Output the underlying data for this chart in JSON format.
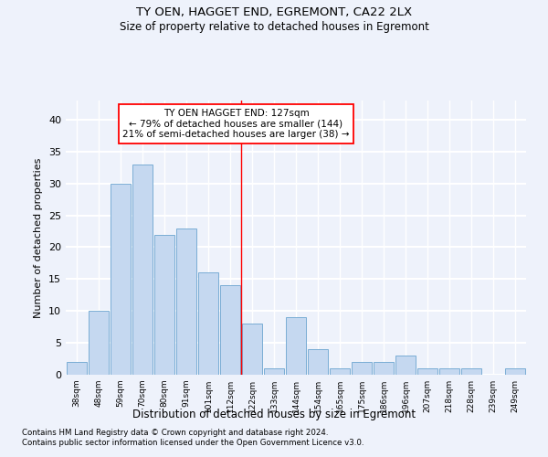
{
  "title": "TY OEN, HAGGET END, EGREMONT, CA22 2LX",
  "subtitle": "Size of property relative to detached houses in Egremont",
  "xlabel": "Distribution of detached houses by size in Egremont",
  "ylabel": "Number of detached properties",
  "categories": [
    "38sqm",
    "48sqm",
    "59sqm",
    "70sqm",
    "80sqm",
    "91sqm",
    "101sqm",
    "112sqm",
    "122sqm",
    "133sqm",
    "144sqm",
    "154sqm",
    "165sqm",
    "175sqm",
    "186sqm",
    "196sqm",
    "207sqm",
    "218sqm",
    "228sqm",
    "239sqm",
    "249sqm"
  ],
  "values": [
    2,
    10,
    30,
    33,
    22,
    23,
    16,
    14,
    8,
    1,
    9,
    4,
    1,
    2,
    2,
    3,
    1,
    1,
    1,
    0,
    1
  ],
  "bar_color": "#c5d8f0",
  "bar_edge_color": "#7aadd4",
  "background_color": "#eef2fb",
  "grid_color": "#ffffff",
  "red_line_x": 7.5,
  "annotation_line1": "TY OEN HAGGET END: 127sqm",
  "annotation_line2": "← 79% of detached houses are smaller (144)",
  "annotation_line3": "21% of semi-detached houses are larger (38) →",
  "ylim": [
    0,
    43
  ],
  "yticks": [
    0,
    5,
    10,
    15,
    20,
    25,
    30,
    35,
    40
  ],
  "footnote1": "Contains HM Land Registry data © Crown copyright and database right 2024.",
  "footnote2": "Contains public sector information licensed under the Open Government Licence v3.0."
}
